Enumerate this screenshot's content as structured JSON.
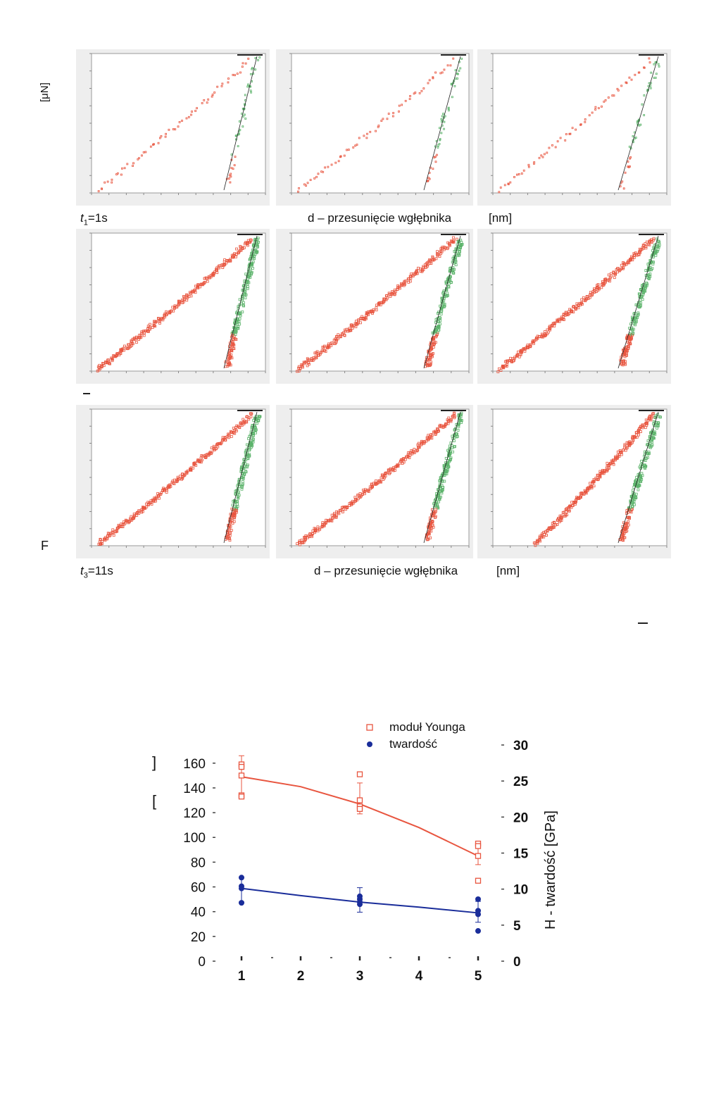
{
  "top_figure": {
    "y_axis_label": "F",
    "y_unit": "[μN]",
    "row1": {
      "time_prefix": "t",
      "time_sub": "1",
      "time_suffix": "=1s",
      "x_label": "d – przesunięcie wgłębnika",
      "x_unit": "[nm]"
    },
    "row3": {
      "time_prefix": "t",
      "time_sub": "3",
      "time_suffix": "=11s",
      "x_label": "d – przesunięcie wgłębnika",
      "x_unit": "[nm]"
    },
    "colors": {
      "loading": "#e8553f",
      "unloading": "#5bb36a",
      "fit": "#222222",
      "panel_bg": "#eeeeee"
    }
  },
  "chart_data": [
    {
      "type": "scatter",
      "title": "",
      "xlabel": "",
      "ylabel": "",
      "y2label": "H - twardość   [GPa]",
      "legend_position": "top",
      "x_ticks": [
        "1",
        "2",
        "3",
        "4",
        "5"
      ],
      "y_ticks": [
        "0",
        "20",
        "40",
        "60",
        "80",
        "100",
        "120",
        "140",
        "160"
      ],
      "y2_ticks": [
        "0",
        "5",
        "10",
        "15",
        "20",
        "25",
        "30"
      ],
      "xlim": [
        0.8,
        5.2
      ],
      "ylim": [
        0,
        170
      ],
      "y2lim": [
        0,
        30
      ],
      "series": [
        {
          "name": "moduł Younga",
          "axis": "left",
          "marker": "open-square",
          "color": "#e8553f",
          "points": [
            [
              1,
              159
            ],
            [
              1,
              157
            ],
            [
              1,
              150
            ],
            [
              1,
              134
            ],
            [
              1,
              133
            ],
            [
              3,
              151
            ],
            [
              3,
              130
            ],
            [
              3,
              125
            ],
            [
              3,
              123
            ],
            [
              5,
              95
            ],
            [
              5,
              93
            ],
            [
              5,
              85
            ],
            [
              5,
              65
            ]
          ],
          "fit": [
            [
              1,
              149
            ],
            [
              2,
              141
            ],
            [
              3,
              127
            ],
            [
              4,
              108
            ],
            [
              5,
              85
            ]
          ],
          "error_bars": [
            [
              1,
              149,
              133,
              166
            ],
            [
              3,
              129,
              119,
              144
            ],
            [
              5,
              85,
              78,
              93
            ]
          ]
        },
        {
          "name": "twardość",
          "axis": "right",
          "marker": "filled-circle",
          "color": "#1a2d9a",
          "points": [
            [
              1,
              11.6
            ],
            [
              1,
              10.4
            ],
            [
              1,
              10.1
            ],
            [
              1,
              8.1
            ],
            [
              3,
              9.0
            ],
            [
              3,
              8.6
            ],
            [
              3,
              8.2
            ],
            [
              3,
              7.9
            ],
            [
              5,
              8.6
            ],
            [
              5,
              7.0
            ],
            [
              5,
              6.5
            ],
            [
              5,
              4.2
            ]
          ],
          "fit": [
            [
              1,
              10.1
            ],
            [
              2,
              9.1
            ],
            [
              3,
              8.2
            ],
            [
              4,
              7.5
            ],
            [
              5,
              6.7
            ]
          ],
          "error_bars": [
            [
              1,
              10.0,
              8.2,
              11.6
            ],
            [
              3,
              8.3,
              6.8,
              10.2
            ],
            [
              5,
              6.7,
              5.4,
              8.3
            ]
          ]
        }
      ]
    }
  ]
}
